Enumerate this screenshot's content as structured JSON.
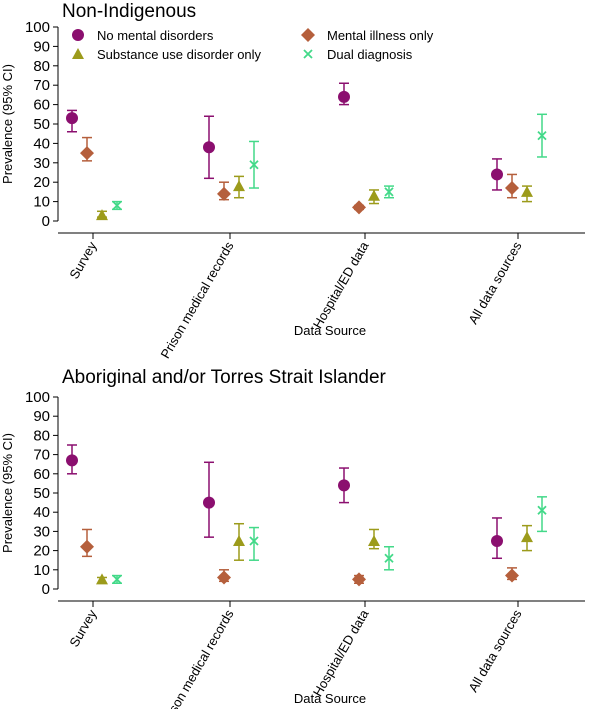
{
  "chart_data": [
    {
      "type": "scatter",
      "title": "Non-Indigenous",
      "xlabel": "Data Source",
      "ylabel": "Prevalence (95% CI)",
      "ylim": [
        0,
        100
      ],
      "yticks": [
        0,
        10,
        20,
        30,
        40,
        50,
        60,
        70,
        80,
        90,
        100
      ],
      "categories": [
        "Survey",
        "Prison medical records",
        "Hospital/ED data",
        "All data sources"
      ],
      "legend": "top",
      "series": [
        {
          "name": "No mental disorders",
          "color": "#8b0f6f",
          "marker": "circle",
          "values": [
            53,
            38,
            64,
            24
          ],
          "ci_low": [
            46,
            22,
            60,
            16
          ],
          "ci_high": [
            57,
            54,
            71,
            32
          ]
        },
        {
          "name": "Mental illness only",
          "color": "#b55f3c",
          "marker": "diamond",
          "values": [
            35,
            14,
            7,
            17
          ],
          "ci_low": [
            31,
            11,
            6,
            12
          ],
          "ci_high": [
            43,
            20,
            8,
            24
          ]
        },
        {
          "name": "Substance use disorder only",
          "color": "#9c9b1b",
          "marker": "triangle",
          "values": [
            3,
            18,
            13,
            15
          ],
          "ci_low": [
            2,
            12,
            9,
            10
          ],
          "ci_high": [
            5,
            23,
            16,
            18
          ]
        },
        {
          "name": "Dual diagnosis",
          "color": "#43d989",
          "marker": "x",
          "values": [
            8,
            29,
            15,
            44
          ],
          "ci_low": [
            6,
            17,
            12,
            33
          ],
          "ci_high": [
            10,
            41,
            18,
            55
          ]
        }
      ]
    },
    {
      "type": "scatter",
      "title": "Aboriginal and/or Torres Strait Islander",
      "xlabel": "Data Source",
      "ylabel": "Prevalence (95% CI)",
      "ylim": [
        0,
        100
      ],
      "yticks": [
        0,
        10,
        20,
        30,
        40,
        50,
        60,
        70,
        80,
        90,
        100
      ],
      "categories": [
        "Survey",
        "Prison medical records",
        "Hospital/ED data",
        "All data sources"
      ],
      "series": [
        {
          "name": "No mental disorders",
          "color": "#8b0f6f",
          "marker": "circle",
          "values": [
            67,
            45,
            54,
            25
          ],
          "ci_low": [
            60,
            27,
            45,
            16
          ],
          "ci_high": [
            75,
            66,
            63,
            37
          ]
        },
        {
          "name": "Mental illness only",
          "color": "#b55f3c",
          "marker": "diamond",
          "values": [
            22,
            6,
            5,
            7
          ],
          "ci_low": [
            17,
            4,
            3,
            5
          ],
          "ci_high": [
            31,
            10,
            7,
            11
          ]
        },
        {
          "name": "Substance use disorder only",
          "color": "#9c9b1b",
          "marker": "triangle",
          "values": [
            5,
            25,
            25,
            27
          ],
          "ci_low": [
            3,
            15,
            21,
            20
          ],
          "ci_high": [
            6,
            34,
            31,
            33
          ]
        },
        {
          "name": "Dual diagnosis",
          "color": "#43d989",
          "marker": "x",
          "values": [
            5,
            25,
            16,
            41
          ],
          "ci_low": [
            3,
            15,
            10,
            30
          ],
          "ci_high": [
            7,
            32,
            22,
            48
          ]
        }
      ]
    }
  ]
}
